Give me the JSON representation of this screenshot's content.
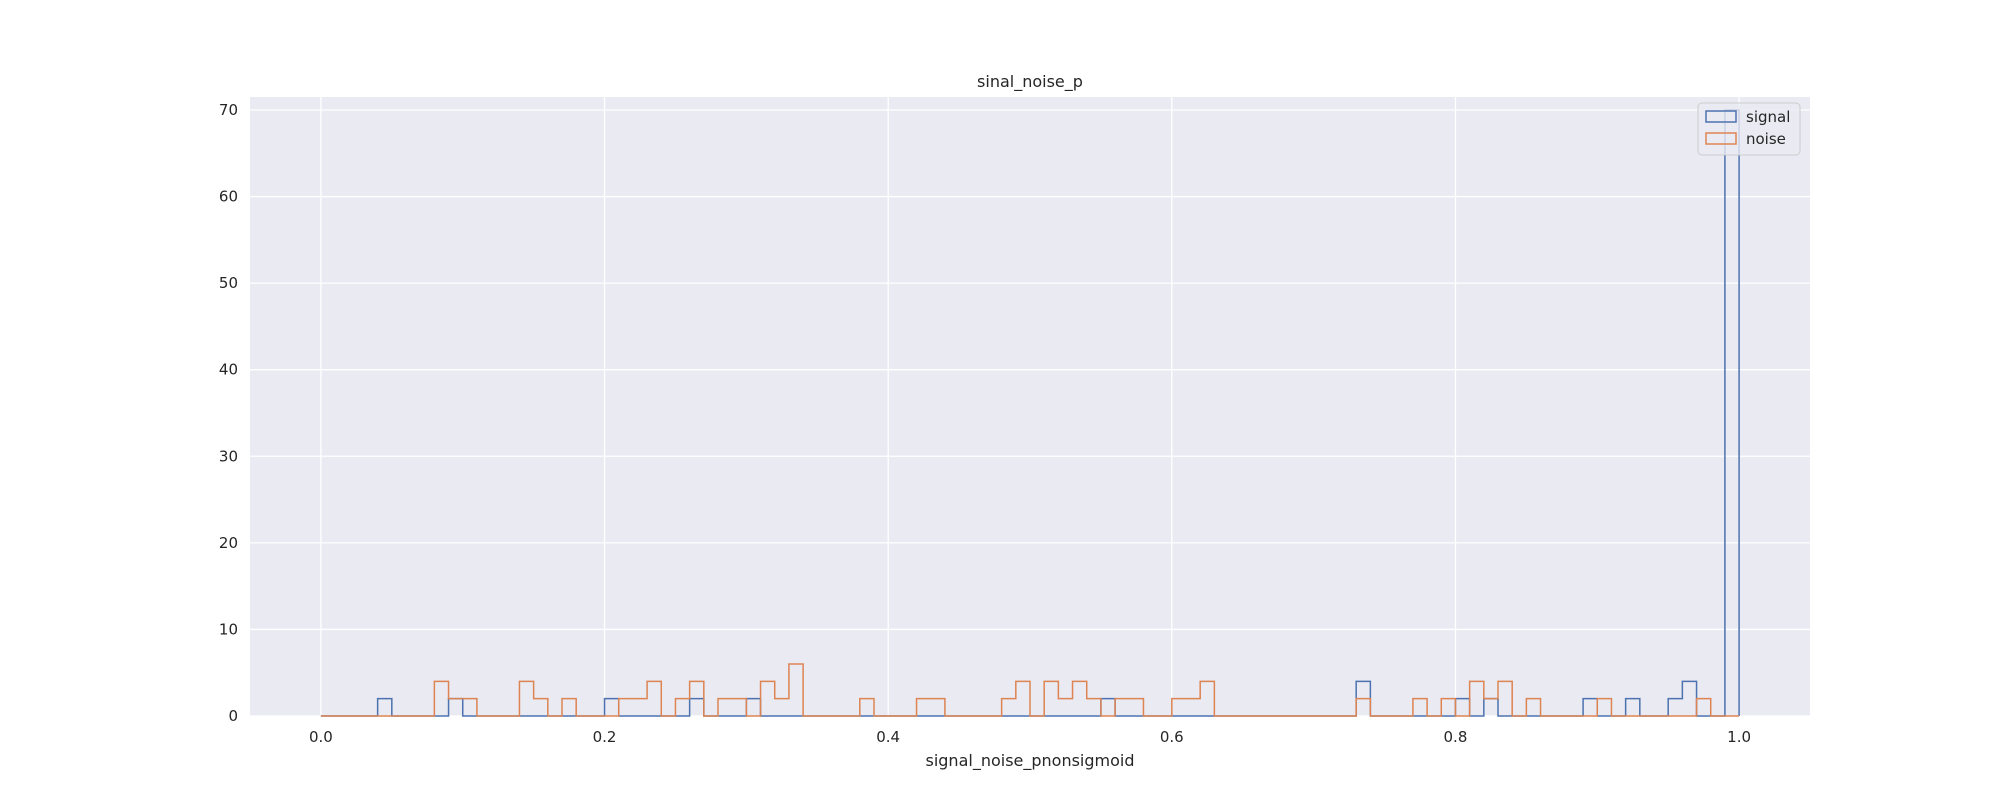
{
  "chart_data": {
    "type": "histogram-step",
    "title": "sinal_noise_p",
    "xlabel": "signal_noise_pnonsigmoid",
    "ylabel": "",
    "xlim": [
      -0.05,
      1.05
    ],
    "ylim": [
      0,
      71.5
    ],
    "xticks": [
      0.0,
      0.2,
      0.4,
      0.6,
      0.8,
      1.0
    ],
    "xtick_labels": [
      "0.0",
      "0.2",
      "0.4",
      "0.6",
      "0.8",
      "1.0"
    ],
    "yticks": [
      0,
      10,
      20,
      30,
      40,
      50,
      60,
      70
    ],
    "ytick_labels": [
      "0",
      "10",
      "20",
      "30",
      "40",
      "50",
      "60",
      "70"
    ],
    "grid": true,
    "legend_position": "top-right",
    "bin_start": 0.0,
    "bin_width": 0.01,
    "bin_count": 100,
    "series": [
      {
        "name": "signal",
        "color": "#4c72b0",
        "bins": [
          {
            "i": 4,
            "count": 2
          },
          {
            "i": 9,
            "count": 2
          },
          {
            "i": 20,
            "count": 2
          },
          {
            "i": 26,
            "count": 2
          },
          {
            "i": 30,
            "count": 2
          },
          {
            "i": 55,
            "count": 2
          },
          {
            "i": 73,
            "count": 4
          },
          {
            "i": 80,
            "count": 2
          },
          {
            "i": 82,
            "count": 2
          },
          {
            "i": 89,
            "count": 2
          },
          {
            "i": 92,
            "count": 2
          },
          {
            "i": 95,
            "count": 2
          },
          {
            "i": 96,
            "count": 4
          },
          {
            "i": 99,
            "count": 70
          }
        ]
      },
      {
        "name": "noise",
        "color": "#dd8452",
        "bins": [
          {
            "i": 8,
            "count": 4
          },
          {
            "i": 9,
            "count": 2
          },
          {
            "i": 10,
            "count": 2
          },
          {
            "i": 14,
            "count": 4
          },
          {
            "i": 15,
            "count": 2
          },
          {
            "i": 17,
            "count": 2
          },
          {
            "i": 21,
            "count": 2
          },
          {
            "i": 22,
            "count": 2
          },
          {
            "i": 23,
            "count": 4
          },
          {
            "i": 25,
            "count": 2
          },
          {
            "i": 26,
            "count": 4
          },
          {
            "i": 28,
            "count": 2
          },
          {
            "i": 29,
            "count": 2
          },
          {
            "i": 31,
            "count": 4
          },
          {
            "i": 32,
            "count": 2
          },
          {
            "i": 33,
            "count": 6
          },
          {
            "i": 38,
            "count": 2
          },
          {
            "i": 42,
            "count": 2
          },
          {
            "i": 43,
            "count": 2
          },
          {
            "i": 48,
            "count": 2
          },
          {
            "i": 49,
            "count": 4
          },
          {
            "i": 51,
            "count": 4
          },
          {
            "i": 52,
            "count": 2
          },
          {
            "i": 53,
            "count": 4
          },
          {
            "i": 54,
            "count": 2
          },
          {
            "i": 56,
            "count": 2
          },
          {
            "i": 57,
            "count": 2
          },
          {
            "i": 60,
            "count": 2
          },
          {
            "i": 61,
            "count": 2
          },
          {
            "i": 62,
            "count": 4
          },
          {
            "i": 73,
            "count": 2
          },
          {
            "i": 77,
            "count": 2
          },
          {
            "i": 79,
            "count": 2
          },
          {
            "i": 81,
            "count": 4
          },
          {
            "i": 82,
            "count": 2
          },
          {
            "i": 83,
            "count": 4
          },
          {
            "i": 85,
            "count": 2
          },
          {
            "i": 90,
            "count": 2
          },
          {
            "i": 97,
            "count": 2
          }
        ]
      }
    ]
  }
}
